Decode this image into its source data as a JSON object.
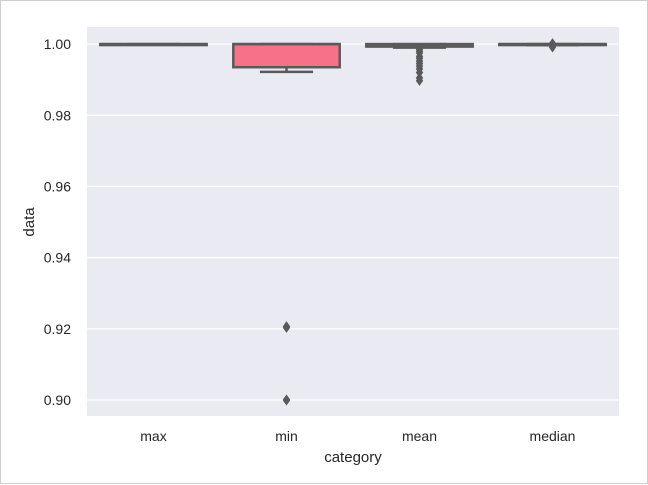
{
  "chart_data": {
    "type": "box",
    "xlabel": "category",
    "ylabel": "data",
    "ylim": [
      0.8955,
      1.0048
    ],
    "yticks": [
      "0.90",
      "0.92",
      "0.94",
      "0.96",
      "0.98",
      "1.00"
    ],
    "ytick_values": [
      0.9,
      0.92,
      0.94,
      0.96,
      0.98,
      1.0
    ],
    "grid": true,
    "categories": [
      "max",
      "min",
      "mean",
      "median"
    ],
    "boxes": [
      {
        "category": "max",
        "q1": 0.9998,
        "median": 1.0,
        "q3": 1.0,
        "whisker_low": 0.9998,
        "whisker_high": 1.0,
        "outliers": [],
        "color": "#ea96a3"
      },
      {
        "category": "min",
        "q1": 0.9935,
        "median": 1.0,
        "q3": 1.0,
        "whisker_low": 0.9922,
        "whisker_high": 1.0,
        "outliers": [
          0.9207,
          0.9203,
          0.9001,
          0.8999
        ],
        "color": "#f77189"
      },
      {
        "category": "mean",
        "q1": 0.9993,
        "median": 0.9995,
        "q3": 1.0,
        "whisker_low": 0.999,
        "whisker_high": 1.0,
        "outliers": [
          0.9985,
          0.998,
          0.9975,
          0.9965,
          0.996,
          0.9952,
          0.9945,
          0.9938,
          0.993,
          0.992,
          0.9905,
          0.9897
        ],
        "color": "#f7a0b0"
      },
      {
        "category": "median",
        "q1": 0.9998,
        "median": 1.0,
        "q3": 1.0,
        "whisker_low": 0.9997,
        "whisker_high": 1.0,
        "outliers": [
          1.0002,
          0.9995,
          0.9991
        ],
        "color": "#ea96a3"
      }
    ]
  }
}
